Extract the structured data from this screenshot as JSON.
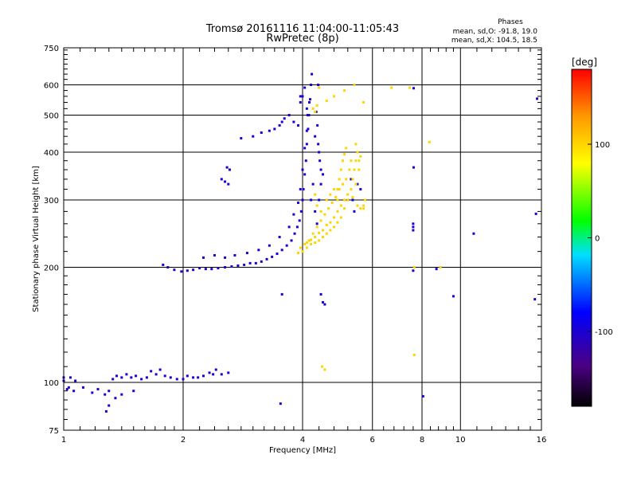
{
  "chart_data": {
    "type": "scatter",
    "title": "Tromsø 20161116 11:04:00-11:05:43",
    "subtitle": "RwPretec (8p)",
    "stats": {
      "heading": "Phases",
      "line_o": "mean, sd,O: -91.8, 19.0",
      "line_x": "mean, sd,X: 104.5, 18.5"
    },
    "xlabel": "Frequency [MHz]",
    "ylabel": "Stationary phase Virtual Height [km]",
    "x_scale": "log",
    "y_scale": "log",
    "xlim": [
      1,
      16
    ],
    "ylim": [
      75,
      750
    ],
    "x_ticks": [
      1,
      2,
      4,
      6,
      8,
      10,
      16
    ],
    "x_tick_labels": [
      "1",
      "2",
      "4",
      "6",
      "8",
      "10",
      "16"
    ],
    "y_ticks": [
      75,
      100,
      200,
      300,
      400,
      500,
      600,
      750
    ],
    "y_tick_labels": [
      "75",
      "100",
      "200",
      "300",
      "400",
      "500",
      "600",
      "750"
    ],
    "x_minor_ticks": [
      1.1,
      1.2,
      1.3,
      1.4,
      1.5,
      1.6,
      1.7,
      1.8,
      1.9,
      2.2,
      2.4,
      2.6,
      2.8,
      3,
      3.2,
      3.4,
      3.6,
      3.8,
      4.4,
      4.8,
      5.2,
      5.6,
      6.4,
      6.8,
      7.2,
      7.6,
      8.4,
      8.8,
      9.2,
      9.6,
      11,
      12,
      13,
      14,
      15
    ],
    "y_minor_ticks": [
      80,
      85,
      90,
      95,
      110,
      120,
      130,
      140,
      150,
      160,
      170,
      180,
      190,
      220,
      240,
      260,
      280,
      320,
      340,
      360,
      380,
      420,
      440,
      460,
      480,
      520,
      540,
      560,
      580,
      620,
      640,
      660,
      680,
      700,
      720,
      740
    ],
    "grid": true,
    "colorbar": {
      "label": "[deg]",
      "range": [
        -180,
        180
      ],
      "tick_values": [
        100,
        0,
        -100
      ],
      "tick_labels": [
        "100",
        "0",
        "-100"
      ]
    },
    "series": [
      {
        "mode": "O",
        "color_value": -100,
        "points": [
          [
            1.0,
            103
          ],
          [
            1.04,
            103
          ],
          [
            1.07,
            101
          ],
          [
            1.02,
            96
          ],
          [
            1.06,
            95
          ],
          [
            1.12,
            97
          ],
          [
            1.18,
            94
          ],
          [
            1.22,
            96
          ],
          [
            1.27,
            93
          ],
          [
            1.3,
            95
          ],
          [
            1.33,
            102
          ],
          [
            1.36,
            104
          ],
          [
            1.4,
            103
          ],
          [
            1.44,
            105
          ],
          [
            1.48,
            103
          ],
          [
            1.52,
            104
          ],
          [
            1.57,
            102
          ],
          [
            1.62,
            103
          ],
          [
            1.66,
            107
          ],
          [
            1.71,
            105
          ],
          [
            1.75,
            108
          ],
          [
            1.8,
            104
          ],
          [
            1.86,
            103
          ],
          [
            1.93,
            102
          ],
          [
            2.0,
            102
          ],
          [
            2.05,
            104
          ],
          [
            2.12,
            103
          ],
          [
            2.18,
            103
          ],
          [
            2.25,
            104
          ],
          [
            2.33,
            106
          ],
          [
            2.38,
            105
          ],
          [
            2.42,
            108
          ],
          [
            2.5,
            105
          ],
          [
            2.6,
            106
          ],
          [
            1.35,
            91
          ],
          [
            1.3,
            87
          ],
          [
            1.28,
            84
          ],
          [
            1.4,
            93
          ],
          [
            1.5,
            95
          ],
          [
            1.78,
            203
          ],
          [
            1.83,
            200
          ],
          [
            1.9,
            197
          ],
          [
            1.98,
            195
          ],
          [
            2.05,
            196
          ],
          [
            2.12,
            197
          ],
          [
            2.2,
            199
          ],
          [
            2.28,
            198
          ],
          [
            2.36,
            198
          ],
          [
            2.45,
            199
          ],
          [
            2.55,
            200
          ],
          [
            2.65,
            201
          ],
          [
            2.75,
            202
          ],
          [
            2.85,
            203
          ],
          [
            2.95,
            205
          ],
          [
            3.05,
            205
          ],
          [
            3.15,
            207
          ],
          [
            3.25,
            210
          ],
          [
            3.35,
            213
          ],
          [
            3.45,
            217
          ],
          [
            3.55,
            222
          ],
          [
            3.65,
            228
          ],
          [
            3.75,
            235
          ],
          [
            3.82,
            245
          ],
          [
            3.88,
            255
          ],
          [
            3.93,
            265
          ],
          [
            3.97,
            280
          ],
          [
            4.0,
            300
          ],
          [
            4.02,
            320
          ],
          [
            4.05,
            350
          ],
          [
            4.08,
            380
          ],
          [
            4.1,
            420
          ],
          [
            4.13,
            460
          ],
          [
            4.15,
            500
          ],
          [
            4.18,
            550
          ],
          [
            4.2,
            600
          ],
          [
            4.22,
            640
          ],
          [
            2.25,
            212
          ],
          [
            2.4,
            215
          ],
          [
            2.55,
            212
          ],
          [
            2.7,
            215
          ],
          [
            2.9,
            218
          ],
          [
            3.1,
            222
          ],
          [
            3.3,
            228
          ],
          [
            3.5,
            240
          ],
          [
            3.7,
            255
          ],
          [
            3.8,
            275
          ],
          [
            3.9,
            295
          ],
          [
            3.95,
            320
          ],
          [
            4.0,
            360
          ],
          [
            4.05,
            410
          ],
          [
            4.1,
            455
          ],
          [
            4.12,
            500
          ],
          [
            4.16,
            540
          ],
          [
            4.3,
            440
          ],
          [
            4.4,
            400
          ],
          [
            4.45,
            360
          ],
          [
            4.25,
            330
          ],
          [
            4.2,
            300
          ],
          [
            4.3,
            280
          ],
          [
            4.35,
            260
          ],
          [
            4.4,
            300
          ],
          [
            4.45,
            330
          ],
          [
            4.5,
            350
          ],
          [
            4.42,
            380
          ],
          [
            4.38,
            420
          ],
          [
            4.36,
            470
          ],
          [
            4.33,
            510
          ],
          [
            3.0,
            440
          ],
          [
            3.15,
            450
          ],
          [
            3.3,
            455
          ],
          [
            3.4,
            460
          ],
          [
            3.5,
            470
          ],
          [
            3.55,
            480
          ],
          [
            3.6,
            490
          ],
          [
            3.7,
            500
          ],
          [
            3.8,
            480
          ],
          [
            3.9,
            470
          ],
          [
            2.5,
            340
          ],
          [
            2.55,
            335
          ],
          [
            2.6,
            330
          ],
          [
            2.62,
            360
          ],
          [
            2.58,
            365
          ],
          [
            2.8,
            435
          ],
          [
            3.95,
            540
          ],
          [
            4.0,
            560
          ],
          [
            4.05,
            590
          ],
          [
            4.1,
            520
          ],
          [
            3.95,
            560
          ],
          [
            4.38,
            600
          ],
          [
            4.45,
            170
          ],
          [
            4.5,
            162
          ],
          [
            4.55,
            160
          ],
          [
            5.3,
            340
          ],
          [
            5.35,
            300
          ],
          [
            5.5,
            330
          ],
          [
            5.6,
            320
          ],
          [
            5.4,
            280
          ],
          [
            5.2,
            300
          ],
          [
            1.0,
            101
          ],
          [
            1.03,
            97
          ],
          [
            7.6,
            260
          ],
          [
            7.6,
            255
          ],
          [
            7.6,
            250
          ],
          [
            7.62,
            365
          ],
          [
            7.6,
            196
          ],
          [
            7.62,
            588
          ],
          [
            8.05,
            92
          ],
          [
            8.7,
            198
          ],
          [
            9.6,
            168
          ],
          [
            10.8,
            245
          ],
          [
            15.4,
            165
          ],
          [
            15.5,
            276
          ],
          [
            15.6,
            552
          ],
          [
            3.55,
            170
          ],
          [
            3.52,
            88
          ]
        ]
      },
      {
        "mode": "X",
        "color_value": 100,
        "points": [
          [
            4.0,
            220
          ],
          [
            4.1,
            225
          ],
          [
            4.2,
            230
          ],
          [
            4.3,
            232
          ],
          [
            4.4,
            235
          ],
          [
            4.5,
            240
          ],
          [
            4.6,
            245
          ],
          [
            4.7,
            250
          ],
          [
            4.8,
            255
          ],
          [
            4.9,
            262
          ],
          [
            5.0,
            270
          ],
          [
            5.1,
            285
          ],
          [
            5.2,
            300
          ],
          [
            5.3,
            320
          ],
          [
            5.35,
            340
          ],
          [
            5.4,
            360
          ],
          [
            5.45,
            380
          ],
          [
            5.5,
            400
          ],
          [
            5.45,
            420
          ],
          [
            3.9,
            218
          ],
          [
            3.95,
            225
          ],
          [
            4.05,
            230
          ],
          [
            4.15,
            235
          ],
          [
            4.25,
            245
          ],
          [
            4.35,
            255
          ],
          [
            4.45,
            265
          ],
          [
            4.55,
            275
          ],
          [
            4.65,
            285
          ],
          [
            4.75,
            295
          ],
          [
            4.85,
            305
          ],
          [
            4.95,
            320
          ],
          [
            5.05,
            330
          ],
          [
            5.15,
            340
          ],
          [
            5.25,
            360
          ],
          [
            5.3,
            380
          ],
          [
            5.2,
            310
          ],
          [
            5.1,
            300
          ],
          [
            5.0,
            290
          ],
          [
            4.9,
            280
          ],
          [
            4.8,
            270
          ],
          [
            4.7,
            262
          ],
          [
            4.6,
            258
          ],
          [
            4.5,
            250
          ],
          [
            4.4,
            246
          ],
          [
            4.3,
            240
          ],
          [
            4.2,
            236
          ],
          [
            4.1,
            232
          ],
          [
            5.5,
            290
          ],
          [
            5.6,
            285
          ],
          [
            5.7,
            290
          ],
          [
            5.75,
            300
          ],
          [
            5.7,
            285
          ],
          [
            5.35,
            305
          ],
          [
            5.45,
            330
          ],
          [
            5.55,
            360
          ],
          [
            5.55,
            380
          ],
          [
            5.6,
            390
          ],
          [
            4.9,
            320
          ],
          [
            4.95,
            340
          ],
          [
            5.0,
            360
          ],
          [
            5.05,
            380
          ],
          [
            5.1,
            395
          ],
          [
            5.15,
            410
          ],
          [
            4.6,
            300
          ],
          [
            4.7,
            310
          ],
          [
            4.8,
            320
          ],
          [
            4.9,
            300
          ],
          [
            4.25,
            520
          ],
          [
            4.3,
            510
          ],
          [
            4.35,
            530
          ],
          [
            4.4,
            590
          ],
          [
            4.6,
            545
          ],
          [
            4.8,
            560
          ],
          [
            5.1,
            580
          ],
          [
            5.7,
            540
          ],
          [
            5.4,
            600
          ],
          [
            6.7,
            590
          ],
          [
            7.45,
            590
          ],
          [
            7.65,
            200
          ],
          [
            7.65,
            118
          ],
          [
            8.35,
            425
          ],
          [
            8.9,
            200
          ],
          [
            4.48,
            110
          ],
          [
            4.55,
            108
          ],
          [
            4.3,
            310
          ],
          [
            4.35,
            290
          ],
          [
            4.45,
            280
          ]
        ]
      }
    ]
  }
}
